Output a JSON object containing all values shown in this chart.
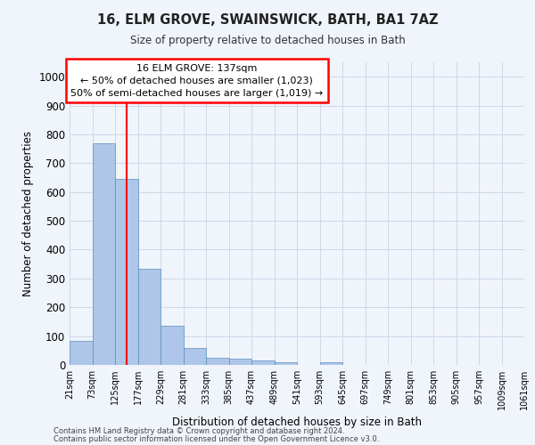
{
  "title": "16, ELM GROVE, SWAINSWICK, BATH, BA1 7AZ",
  "subtitle": "Size of property relative to detached houses in Bath",
  "xlabel": "Distribution of detached houses by size in Bath",
  "ylabel": "Number of detached properties",
  "footnote1": "Contains HM Land Registry data © Crown copyright and database right 2024.",
  "footnote2": "Contains public sector information licensed under the Open Government Licence v3.0.",
  "annotation_title": "16 ELM GROVE: 137sqm",
  "annotation_line1": "← 50% of detached houses are smaller (1,023)",
  "annotation_line2": "50% of semi-detached houses are larger (1,019) →",
  "bar_values": [
    83,
    770,
    644,
    334,
    135,
    60,
    25,
    22,
    14,
    8,
    0,
    10,
    0,
    0,
    0,
    0,
    0,
    0,
    0,
    0
  ],
  "bar_labels": [
    "21sqm",
    "73sqm",
    "125sqm",
    "177sqm",
    "229sqm",
    "281sqm",
    "333sqm",
    "385sqm",
    "437sqm",
    "489sqm",
    "541sqm",
    "593sqm",
    "645sqm",
    "697sqm",
    "749sqm",
    "801sqm",
    "853sqm",
    "905sqm",
    "957sqm",
    "1009sqm",
    "1061sqm"
  ],
  "bar_color": "#aec6e8",
  "bar_edge_color": "#5a8fc0",
  "red_line_x": 2.5,
  "ylim": [
    0,
    1050
  ],
  "yticks": [
    0,
    100,
    200,
    300,
    400,
    500,
    600,
    700,
    800,
    900,
    1000
  ],
  "grid_color": "#d0d8e8",
  "background_color": "#f0f4fb"
}
